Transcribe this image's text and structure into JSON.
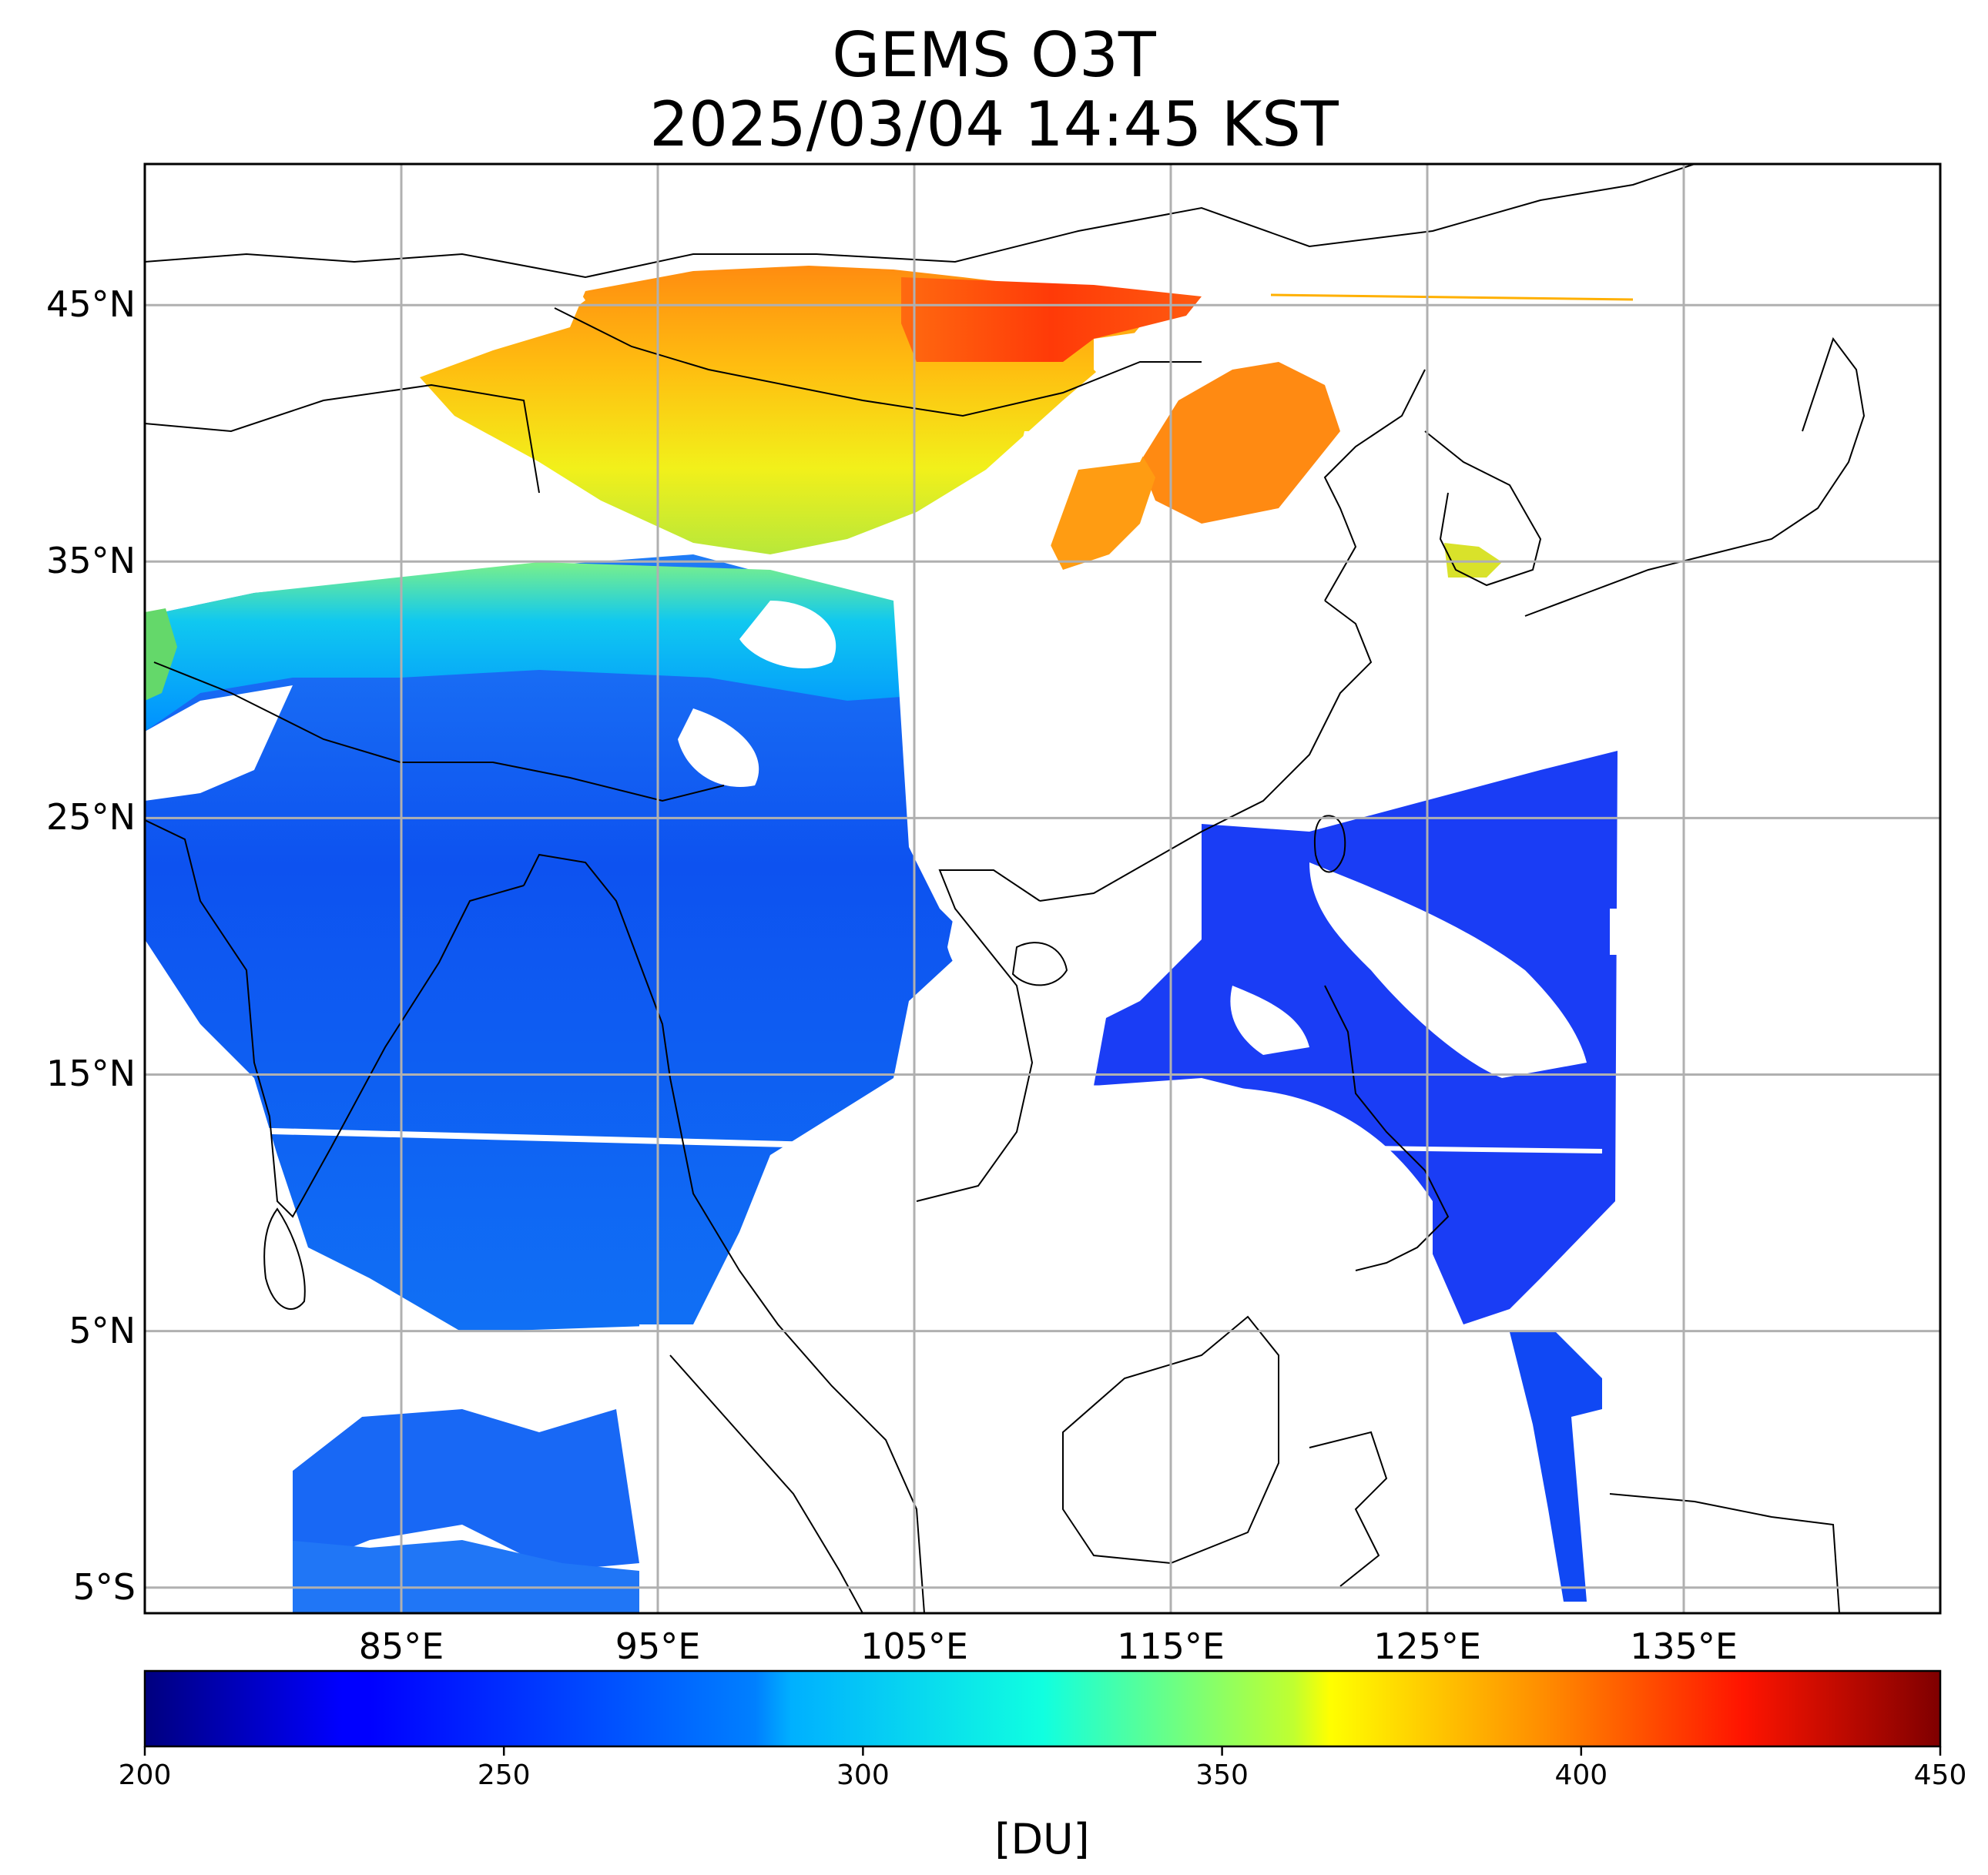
{
  "title": {
    "line1": "GEMS O3T",
    "line2": "2025/03/04 14:45 KST"
  },
  "map": {
    "type": "geographic-raster",
    "projection": "plate-carree",
    "lon_range": [
      75,
      145
    ],
    "lat_range": [
      -6,
      50.5
    ],
    "grid": true,
    "coastlines": true,
    "country_borders": true,
    "missing_data_color": "#ffffff",
    "lat_ticks": [
      {
        "value": 45,
        "label": "45°N"
      },
      {
        "value": 35,
        "label": "35°N"
      },
      {
        "value": 25,
        "label": "25°N"
      },
      {
        "value": 15,
        "label": "15°N"
      },
      {
        "value": 5,
        "label": "5°N"
      },
      {
        "value": -5,
        "label": "5°S"
      }
    ],
    "lon_ticks": [
      {
        "value": 85,
        "label": "85°E"
      },
      {
        "value": 95,
        "label": "95°E"
      },
      {
        "value": 105,
        "label": "105°E"
      },
      {
        "value": 115,
        "label": "115°E"
      },
      {
        "value": 125,
        "label": "125°E"
      },
      {
        "value": 135,
        "label": "135°E"
      }
    ]
  },
  "colorbar": {
    "colormap": "jet",
    "min": 200,
    "max": 450,
    "ticks": [
      {
        "value": 200,
        "label": "200"
      },
      {
        "value": 250,
        "label": "250"
      },
      {
        "value": 300,
        "label": "300"
      },
      {
        "value": 350,
        "label": "350"
      },
      {
        "value": 400,
        "label": "400"
      },
      {
        "value": 450,
        "label": "450"
      }
    ],
    "unit_label": "[DU]"
  }
}
